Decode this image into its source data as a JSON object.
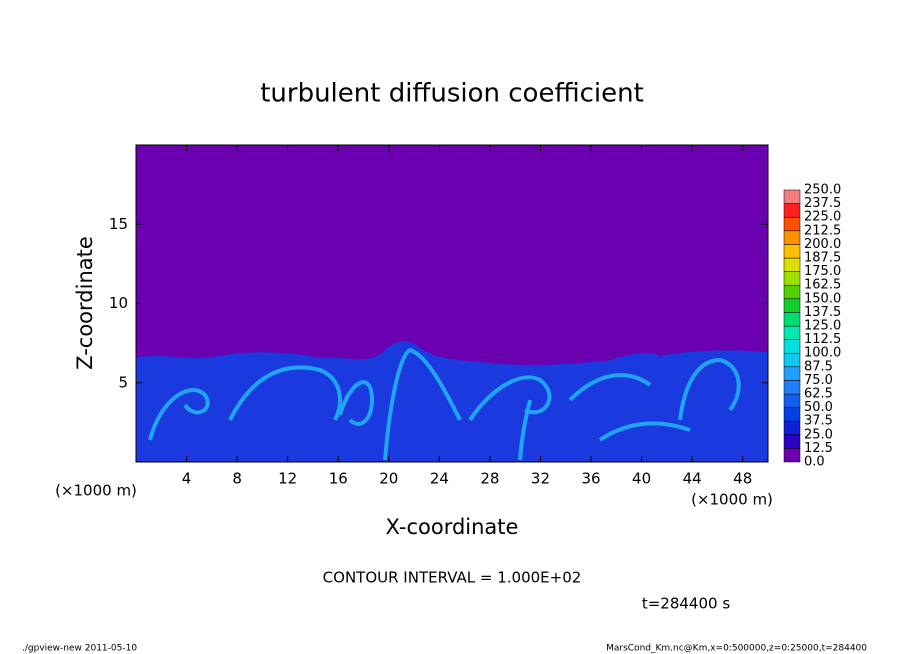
{
  "chart_data": {
    "type": "contour",
    "title": "turbulent diffusion coefficient",
    "x_label": "X-coordinate",
    "y_label": "Z-coordinate",
    "x_unit": "(×1000 m)",
    "y_unit": "(×1000 m)",
    "xlim": [
      0,
      50
    ],
    "ylim": [
      0,
      20
    ],
    "xticks": [
      4,
      8,
      12,
      16,
      20,
      24,
      28,
      32,
      36,
      40,
      44,
      48
    ],
    "yticks": [
      5,
      10,
      15
    ],
    "levels": [
      {
        "value": 0,
        "label": "0.0"
      },
      {
        "value": 12.5,
        "label": "12.5"
      },
      {
        "value": 25,
        "label": "25.0"
      },
      {
        "value": 37.5,
        "label": "37.5"
      },
      {
        "value": 50,
        "label": "50.0"
      },
      {
        "value": 62.5,
        "label": "62.5"
      },
      {
        "value": 75,
        "label": "75.0"
      },
      {
        "value": 87.5,
        "label": "87.5"
      },
      {
        "value": 100,
        "label": "100.0"
      },
      {
        "value": 112.5,
        "label": "112.5"
      },
      {
        "value": 125,
        "label": "125.0"
      },
      {
        "value": 137.5,
        "label": "137.5"
      },
      {
        "value": 150,
        "label": "150.0"
      },
      {
        "value": 162.5,
        "label": "162.5"
      },
      {
        "value": 175,
        "label": "175.0"
      },
      {
        "value": 187.5,
        "label": "187.5"
      },
      {
        "value": 200,
        "label": "200.0"
      },
      {
        "value": 212.5,
        "label": "212.5"
      },
      {
        "value": 225,
        "label": "225.0"
      },
      {
        "value": 237.5,
        "label": "237.5"
      },
      {
        "value": 250,
        "label": "250.0"
      }
    ],
    "level_colors": [
      "#6a00b0",
      "#2a00c8",
      "#1020d8",
      "#0040e6",
      "#1060f0",
      "#2080f8",
      "#20a0ff",
      "#10c8f0",
      "#00e0e0",
      "#00e8b0",
      "#00e070",
      "#10d030",
      "#50d000",
      "#a0e000",
      "#e0e000",
      "#ffc000",
      "#ff9000",
      "#ff5000",
      "#ff2020",
      "#f08080"
    ],
    "contour_interval": "CONTOUR INTERVAL = 1.000E+02",
    "time_label": "t=284400 s",
    "footer_left": "./gpview-new  2011-05-10",
    "footer_right": "MarsCond_Km.nc@Km,x=0:500000,z=0:25000,t=284400"
  }
}
